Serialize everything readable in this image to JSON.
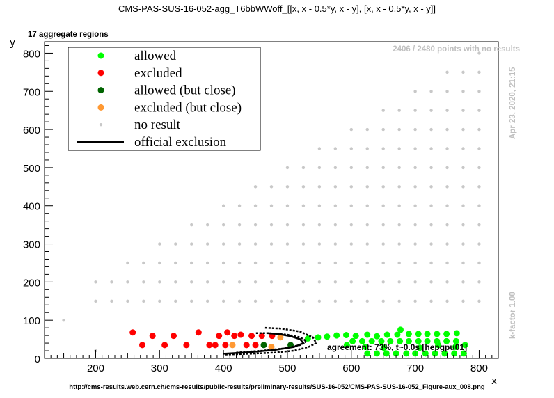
{
  "title": "CMS-PAS-SUS-16-052-agg_T6bbWWoff_[[x, x - 0.5*y, x - y], [x, x - 0.5*y, x - y]]",
  "subtitle": "17 aggregate regions",
  "top_right_note": "2406 / 2480 points with no results",
  "date_stamp": "Apr 23, 2020, 21:15",
  "kfactor": "k-factor 1.00",
  "agreement": "agreement: 73%, t~0.0s [hepgpu01]",
  "footer_url": "http://cms-results.web.cern.ch/cms-results/public-results/preliminary-results/SUS-16-052/CMS-PAS-SUS-16-052_Figure-aux_008.png",
  "colors": {
    "allowed": "#00ff00",
    "excluded": "#ff0000",
    "allowed_close": "#006400",
    "excluded_close": "#ff9933",
    "no_result": "#c8c8c8",
    "official": "#000000",
    "annot": "#c0c0c0"
  },
  "chart_data": {
    "type": "scatter",
    "xlabel": "x",
    "ylabel": "y",
    "xlim": [
      120,
      830
    ],
    "ylim": [
      0,
      830
    ],
    "xticks": [
      200,
      300,
      400,
      500,
      600,
      700,
      800
    ],
    "yticks": [
      0,
      100,
      200,
      300,
      400,
      500,
      600,
      700,
      800
    ],
    "legend_position": "top-left",
    "legend": [
      {
        "key": "allowed",
        "label": "allowed",
        "kind": "marker"
      },
      {
        "key": "excluded",
        "label": "excluded",
        "kind": "marker"
      },
      {
        "key": "allowed_close",
        "label": "allowed (but close)",
        "kind": "marker"
      },
      {
        "key": "excluded_close",
        "label": "excluded (but close)",
        "kind": "marker"
      },
      {
        "key": "no_result",
        "label": "no result",
        "kind": "small"
      },
      {
        "key": "official",
        "label": "official exclusion",
        "kind": "line"
      }
    ],
    "no_result_grid": {
      "columns": [
        {
          "x": 150,
          "ymax": 100
        },
        {
          "x": 200,
          "ymax": 200
        },
        {
          "x": 225,
          "ymax": 200
        },
        {
          "x": 250,
          "ymax": 250
        },
        {
          "x": 275,
          "ymax": 250
        },
        {
          "x": 300,
          "ymax": 300
        },
        {
          "x": 325,
          "ymax": 300
        },
        {
          "x": 350,
          "ymax": 350
        },
        {
          "x": 375,
          "ymax": 350
        },
        {
          "x": 400,
          "ymax": 400
        },
        {
          "x": 425,
          "ymax": 400
        },
        {
          "x": 450,
          "ymax": 450
        },
        {
          "x": 475,
          "ymax": 450
        },
        {
          "x": 500,
          "ymax": 500
        },
        {
          "x": 525,
          "ymax": 500
        },
        {
          "x": 550,
          "ymax": 550
        },
        {
          "x": 575,
          "ymax": 550
        },
        {
          "x": 600,
          "ymax": 600
        },
        {
          "x": 625,
          "ymax": 600
        },
        {
          "x": 650,
          "ymax": 650
        },
        {
          "x": 675,
          "ymax": 650
        },
        {
          "x": 700,
          "ymax": 700
        },
        {
          "x": 725,
          "ymax": 700
        },
        {
          "x": 750,
          "ymax": 750
        },
        {
          "x": 775,
          "ymax": 750
        },
        {
          "x": 800,
          "ymax": 800
        }
      ],
      "y_start": 150,
      "y_step": 50,
      "extra_points": [
        [
          200,
          20
        ]
      ]
    },
    "excluded": [
      [
        258,
        68
      ],
      [
        273,
        35
      ],
      [
        289,
        59
      ],
      [
        308,
        35
      ],
      [
        322,
        59
      ],
      [
        342,
        35
      ],
      [
        361,
        68
      ],
      [
        378,
        35
      ],
      [
        387,
        35
      ],
      [
        393,
        59
      ],
      [
        403,
        35
      ],
      [
        406,
        68
      ],
      [
        417,
        59
      ],
      [
        427,
        62
      ],
      [
        436,
        35
      ],
      [
        444,
        59
      ],
      [
        450,
        35
      ],
      [
        460,
        59
      ],
      [
        476,
        59
      ]
    ],
    "excluded_close": [
      [
        414,
        35
      ],
      [
        475,
        30
      ],
      [
        489,
        55
      ]
    ],
    "allowed_close": [
      [
        463,
        35
      ],
      [
        505,
        35
      ]
    ],
    "allowed": [
      [
        532,
        52
      ],
      [
        548,
        55
      ],
      [
        562,
        57
      ],
      [
        577,
        60
      ],
      [
        592,
        61
      ],
      [
        607,
        59
      ],
      [
        625,
        62
      ],
      [
        640,
        58
      ],
      [
        656,
        62
      ],
      [
        672,
        62
      ],
      [
        677,
        75
      ],
      [
        690,
        64
      ],
      [
        705,
        64
      ],
      [
        719,
        64
      ],
      [
        734,
        64
      ],
      [
        749,
        64
      ],
      [
        765,
        66
      ],
      [
        602,
        45
      ],
      [
        617,
        45
      ],
      [
        632,
        45
      ],
      [
        647,
        45
      ],
      [
        661,
        45
      ],
      [
        676,
        45
      ],
      [
        690,
        45
      ],
      [
        705,
        45
      ],
      [
        719,
        45
      ],
      [
        734,
        45
      ],
      [
        749,
        45
      ],
      [
        764,
        45
      ],
      [
        593,
        35
      ],
      [
        622,
        30
      ],
      [
        651,
        28
      ],
      [
        707,
        28
      ],
      [
        736,
        35
      ],
      [
        763,
        30
      ],
      [
        778,
        35
      ],
      [
        625,
        13
      ],
      [
        640,
        13
      ],
      [
        655,
        13
      ],
      [
        670,
        13
      ],
      [
        686,
        13
      ],
      [
        700,
        13
      ],
      [
        716,
        13
      ],
      [
        731,
        13
      ],
      [
        746,
        13
      ],
      [
        761,
        13
      ],
      [
        776,
        13
      ]
    ],
    "official_curves": [
      {
        "dash": true,
        "points": [
          [
            403,
            10
          ],
          [
            440,
            12
          ],
          [
            480,
            15
          ],
          [
            510,
            20
          ],
          [
            533,
            30
          ],
          [
            545,
            40
          ],
          [
            540,
            55
          ],
          [
            520,
            70
          ],
          [
            490,
            78
          ],
          [
            465,
            80
          ]
        ]
      },
      {
        "dash": true,
        "points": [
          [
            420,
            15
          ],
          [
            460,
            20
          ],
          [
            495,
            26
          ],
          [
            520,
            35
          ],
          [
            530,
            45
          ],
          [
            520,
            55
          ],
          [
            500,
            62
          ],
          [
            470,
            66
          ],
          [
            450,
            66
          ]
        ]
      },
      {
        "dash": false,
        "points": [
          [
            400,
            12
          ],
          [
            440,
            16
          ],
          [
            480,
            22
          ],
          [
            510,
            30
          ],
          [
            525,
            40
          ],
          [
            520,
            50
          ],
          [
            505,
            58
          ],
          [
            485,
            64
          ],
          [
            468,
            66
          ]
        ]
      }
    ]
  }
}
